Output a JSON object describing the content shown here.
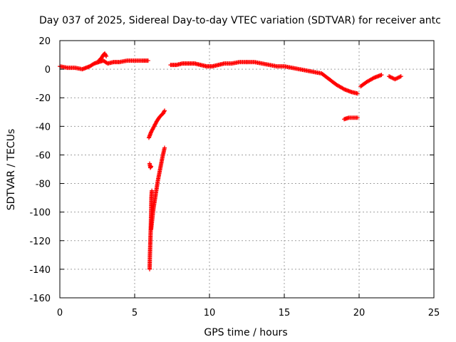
{
  "chart_data": {
    "type": "scatter",
    "title": "Day 037 of 2025, Sidereal Day-to-day VTEC variation (SDTVAR) for receiver antc",
    "xlabel": "GPS time / hours",
    "ylabel": "SDTVAR / TECUs",
    "xlim": [
      0,
      25
    ],
    "ylim": [
      -160,
      20
    ],
    "xticks": [
      0,
      5,
      10,
      15,
      20,
      25
    ],
    "yticks": [
      20,
      0,
      -20,
      -40,
      -60,
      -80,
      -100,
      -120,
      -140,
      -160
    ],
    "grid": true,
    "marker": "+",
    "color": "#ff0000",
    "series": [
      {
        "name": "SDTVAR",
        "segments": [
          {
            "x": [
              0,
              0.5,
              1.0,
              1.5,
              2.0,
              2.3,
              2.6,
              2.9,
              3.2,
              3.6,
              4.0,
              4.5,
              5.0,
              5.5,
              5.9
            ],
            "y": [
              2,
              1,
              1,
              0,
              2,
              4,
              5,
              6,
              4,
              5,
              5,
              6,
              6,
              6,
              6
            ]
          },
          {
            "x": [
              2.6,
              2.8,
              2.9,
              3.0,
              3.1
            ],
            "y": [
              6,
              8,
              10,
              11,
              9
            ]
          },
          {
            "x": [
              7.4,
              7.8,
              8.2,
              8.6,
              9.0,
              9.4,
              9.8,
              10.2,
              10.6,
              11.0,
              11.5,
              12.0,
              12.5
            ],
            "y": [
              3,
              3,
              4,
              4,
              4,
              3,
              2,
              2,
              3,
              4,
              4,
              5,
              5
            ]
          },
          {
            "x": [
              12.5,
              13.0,
              13.5,
              14.0,
              14.5,
              15.0,
              15.5,
              16.0,
              16.5,
              17.0,
              17.5,
              18.0,
              18.5,
              19.0,
              19.5,
              19.9
            ],
            "y": [
              5,
              5,
              4,
              3,
              2,
              2,
              1,
              0,
              -1,
              -2,
              -3,
              -7,
              -11,
              -14,
              -16,
              -17
            ]
          },
          {
            "x": [
              20.1,
              20.5,
              21.0,
              21.5
            ],
            "y": [
              -12,
              -9,
              -6,
              -4
            ]
          },
          {
            "x": [
              22.0,
              22.2,
              22.4,
              22.6,
              22.8
            ],
            "y": [
              -5,
              -6,
              -7,
              -6,
              -5
            ]
          },
          {
            "x": [
              19.0,
              19.3,
              19.6,
              19.9
            ],
            "y": [
              -35,
              -34,
              -34,
              -34
            ]
          },
          {
            "x": [
              5.95,
              6.1,
              6.3,
              6.5,
              6.7,
              6.9,
              7.0
            ],
            "y": [
              -48,
              -44,
              -40,
              -36,
              -33,
              -31,
              -29
            ]
          },
          {
            "x": [
              6.0,
              6.05,
              6.1
            ],
            "y": [
              -66,
              -69,
              -68
            ]
          },
          {
            "x": [
              6.0,
              6.02,
              6.05,
              6.08,
              6.1,
              6.12,
              6.15
            ],
            "y": [
              -140,
              -130,
              -120,
              -110,
              -100,
              -90,
              -85
            ]
          },
          {
            "x": [
              6.1,
              6.25,
              6.4,
              6.55,
              6.7,
              6.85,
              7.0
            ],
            "y": [
              -112,
              -98,
              -88,
              -78,
              -70,
              -62,
              -55
            ]
          }
        ]
      }
    ]
  }
}
